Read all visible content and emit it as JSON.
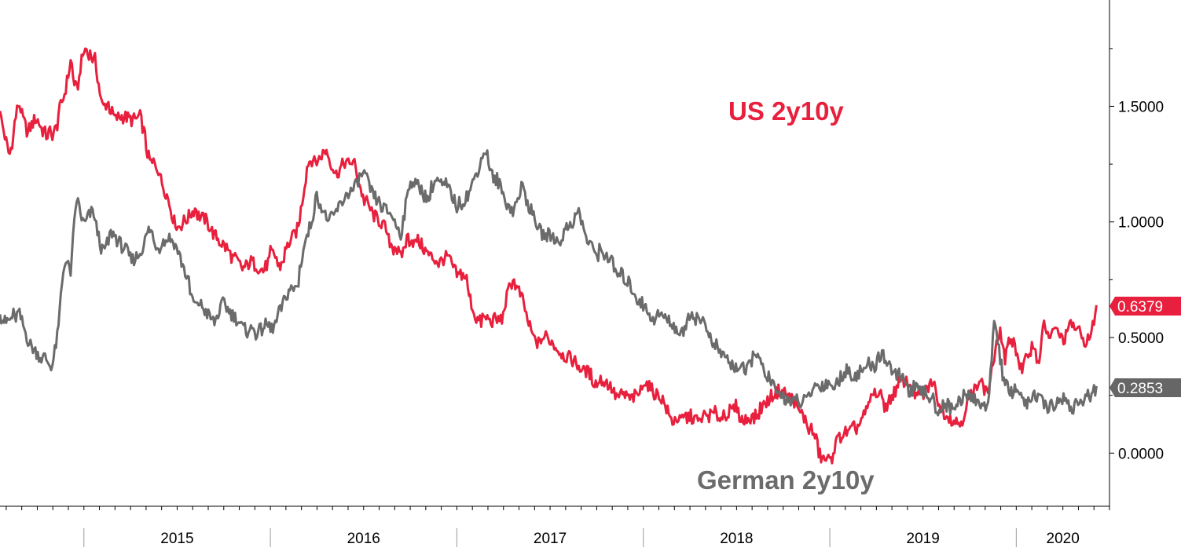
{
  "chart_data": {
    "type": "line",
    "title": "",
    "xlabel": "",
    "ylabel": "",
    "x_tick_labels": [
      "2015",
      "2016",
      "2017",
      "2018",
      "2019",
      "2020"
    ],
    "y_tick_labels": [
      "1.5000",
      "1.0000",
      "0.5000",
      "0.0000"
    ],
    "ylim": [
      -0.23,
      1.96
    ],
    "xlim": [
      2014.55,
      2020.5
    ],
    "grid": false,
    "legend": "inline labels on plot",
    "y_axis_side": "right",
    "colors": {
      "us": "#e8203d",
      "german": "#6b6b6b"
    },
    "series": [
      {
        "name": "US 2y10y",
        "color": "#e8203d",
        "last_value_label": "0.6379",
        "x": [
          2014.55,
          2014.6,
          2014.65,
          2014.7,
          2014.75,
          2014.8,
          2014.85,
          2014.9,
          2014.93,
          2014.96,
          2015.0,
          2015.03,
          2015.06,
          2015.1,
          2015.13,
          2015.17,
          2015.2,
          2015.25,
          2015.3,
          2015.35,
          2015.4,
          2015.45,
          2015.5,
          2015.55,
          2015.6,
          2015.65,
          2015.7,
          2015.75,
          2015.8,
          2015.85,
          2015.9,
          2015.95,
          2016.0,
          2016.05,
          2016.1,
          2016.15,
          2016.2,
          2016.25,
          2016.3,
          2016.35,
          2016.4,
          2016.45,
          2016.5,
          2016.55,
          2016.6,
          2016.65,
          2016.7,
          2016.75,
          2016.8,
          2016.85,
          2016.9,
          2016.95,
          2017.0,
          2017.05,
          2017.1,
          2017.15,
          2017.2,
          2017.25,
          2017.3,
          2017.35,
          2017.4,
          2017.45,
          2017.5,
          2017.55,
          2017.6,
          2017.65,
          2017.7,
          2017.75,
          2017.8,
          2017.85,
          2017.9,
          2017.95,
          2018.0,
          2018.05,
          2018.1,
          2018.15,
          2018.2,
          2018.25,
          2018.3,
          2018.35,
          2018.4,
          2018.45,
          2018.5,
          2018.55,
          2018.6,
          2018.65,
          2018.7,
          2018.75,
          2018.8,
          2018.85,
          2018.9,
          2018.95,
          2019.0,
          2019.05,
          2019.1,
          2019.15,
          2019.2,
          2019.25,
          2019.3,
          2019.35,
          2019.4,
          2019.45,
          2019.5,
          2019.55,
          2019.6,
          2019.65,
          2019.7,
          2019.75,
          2019.8,
          2019.85,
          2019.88,
          2019.91,
          2019.94,
          2019.97,
          2020.0,
          2020.03,
          2020.06,
          2020.09,
          2020.12,
          2020.15,
          2020.18,
          2020.21,
          2020.25,
          2020.3,
          2020.35,
          2020.4,
          2020.43
        ],
        "y": [
          1.48,
          1.3,
          1.5,
          1.38,
          1.45,
          1.36,
          1.42,
          1.55,
          1.68,
          1.58,
          1.72,
          1.75,
          1.7,
          1.48,
          1.5,
          1.44,
          1.45,
          1.43,
          1.44,
          1.28,
          1.22,
          1.12,
          0.97,
          1.0,
          1.05,
          1.02,
          0.95,
          0.92,
          0.85,
          0.8,
          0.83,
          0.78,
          0.85,
          0.82,
          0.91,
          0.98,
          1.25,
          1.28,
          1.32,
          1.22,
          1.28,
          1.25,
          1.1,
          1.02,
          0.98,
          0.92,
          0.83,
          0.95,
          0.9,
          0.85,
          0.82,
          0.86,
          0.78,
          0.75,
          0.6,
          0.56,
          0.58,
          0.6,
          0.75,
          0.65,
          0.52,
          0.48,
          0.5,
          0.45,
          0.43,
          0.4,
          0.35,
          0.32,
          0.3,
          0.25,
          0.23,
          0.25,
          0.3,
          0.25,
          0.22,
          0.12,
          0.14,
          0.18,
          0.15,
          0.16,
          0.18,
          0.15,
          0.2,
          0.14,
          0.17,
          0.2,
          0.25,
          0.28,
          0.22,
          0.19,
          0.1,
          0.0,
          -0.04,
          0.05,
          0.08,
          0.12,
          0.2,
          0.25,
          0.22,
          0.28,
          0.3,
          0.27,
          0.24,
          0.3,
          0.18,
          0.15,
          0.13,
          0.22,
          0.35,
          0.25,
          0.4,
          0.55,
          0.4,
          0.5,
          0.45,
          0.35,
          0.4,
          0.5,
          0.38,
          0.55,
          0.48,
          0.52,
          0.5,
          0.55,
          0.5,
          0.5,
          0.64
        ]
      },
      {
        "name": "German 2y10y",
        "color": "#6b6b6b",
        "last_value_label": "0.2853",
        "x": [
          2014.55,
          2014.6,
          2014.65,
          2014.7,
          2014.75,
          2014.8,
          2014.83,
          2014.86,
          2014.88,
          2014.9,
          2014.93,
          2014.96,
          2015.0,
          2015.05,
          2015.1,
          2015.15,
          2015.2,
          2015.25,
          2015.3,
          2015.35,
          2015.4,
          2015.45,
          2015.5,
          2015.55,
          2015.6,
          2015.65,
          2015.7,
          2015.75,
          2015.8,
          2015.85,
          2015.9,
          2015.95,
          2016.0,
          2016.05,
          2016.1,
          2016.15,
          2016.2,
          2016.25,
          2016.3,
          2016.35,
          2016.4,
          2016.45,
          2016.5,
          2016.55,
          2016.6,
          2016.65,
          2016.7,
          2016.75,
          2016.8,
          2016.85,
          2016.9,
          2016.95,
          2017.0,
          2017.05,
          2017.1,
          2017.15,
          2017.2,
          2017.25,
          2017.3,
          2017.35,
          2017.4,
          2017.45,
          2017.5,
          2017.55,
          2017.6,
          2017.65,
          2017.7,
          2017.75,
          2017.8,
          2017.85,
          2017.9,
          2017.95,
          2018.0,
          2018.05,
          2018.1,
          2018.15,
          2018.2,
          2018.25,
          2018.3,
          2018.35,
          2018.4,
          2018.45,
          2018.5,
          2018.55,
          2018.6,
          2018.65,
          2018.7,
          2018.75,
          2018.8,
          2018.85,
          2018.9,
          2018.95,
          2019.0,
          2019.05,
          2019.1,
          2019.15,
          2019.2,
          2019.25,
          2019.3,
          2019.35,
          2019.4,
          2019.45,
          2019.5,
          2019.55,
          2019.6,
          2019.65,
          2019.7,
          2019.75,
          2019.8,
          2019.85,
          2019.88,
          2019.91,
          2019.93,
          2019.96,
          2020.0,
          2020.05,
          2020.1,
          2020.15,
          2020.2,
          2020.25,
          2020.3,
          2020.35,
          2020.4,
          2020.43
        ],
        "y": [
          0.6,
          0.55,
          0.62,
          0.5,
          0.45,
          0.4,
          0.36,
          0.5,
          0.72,
          0.85,
          0.8,
          1.1,
          1.0,
          1.05,
          0.88,
          0.95,
          0.9,
          0.82,
          0.85,
          0.95,
          0.9,
          0.92,
          0.88,
          0.75,
          0.65,
          0.6,
          0.55,
          0.65,
          0.6,
          0.55,
          0.52,
          0.55,
          0.55,
          0.6,
          0.7,
          0.75,
          0.95,
          1.1,
          1.0,
          1.05,
          1.1,
          1.15,
          1.2,
          1.1,
          1.05,
          1.02,
          0.95,
          1.18,
          1.15,
          1.12,
          1.18,
          1.15,
          1.05,
          1.1,
          1.2,
          1.3,
          1.2,
          1.1,
          1.05,
          1.15,
          1.05,
          0.97,
          0.95,
          0.93,
          1.0,
          1.05,
          0.92,
          0.88,
          0.85,
          0.8,
          0.75,
          0.68,
          0.65,
          0.6,
          0.58,
          0.55,
          0.5,
          0.6,
          0.58,
          0.52,
          0.45,
          0.4,
          0.38,
          0.35,
          0.45,
          0.35,
          0.28,
          0.25,
          0.22,
          0.2,
          0.25,
          0.3,
          0.28,
          0.32,
          0.35,
          0.33,
          0.38,
          0.4,
          0.42,
          0.35,
          0.3,
          0.28,
          0.25,
          0.22,
          0.2,
          0.18,
          0.22,
          0.25,
          0.23,
          0.2,
          0.6,
          0.45,
          0.3,
          0.25,
          0.28,
          0.22,
          0.25,
          0.2,
          0.22,
          0.25,
          0.2,
          0.22,
          0.25,
          0.29
        ]
      }
    ]
  }
}
